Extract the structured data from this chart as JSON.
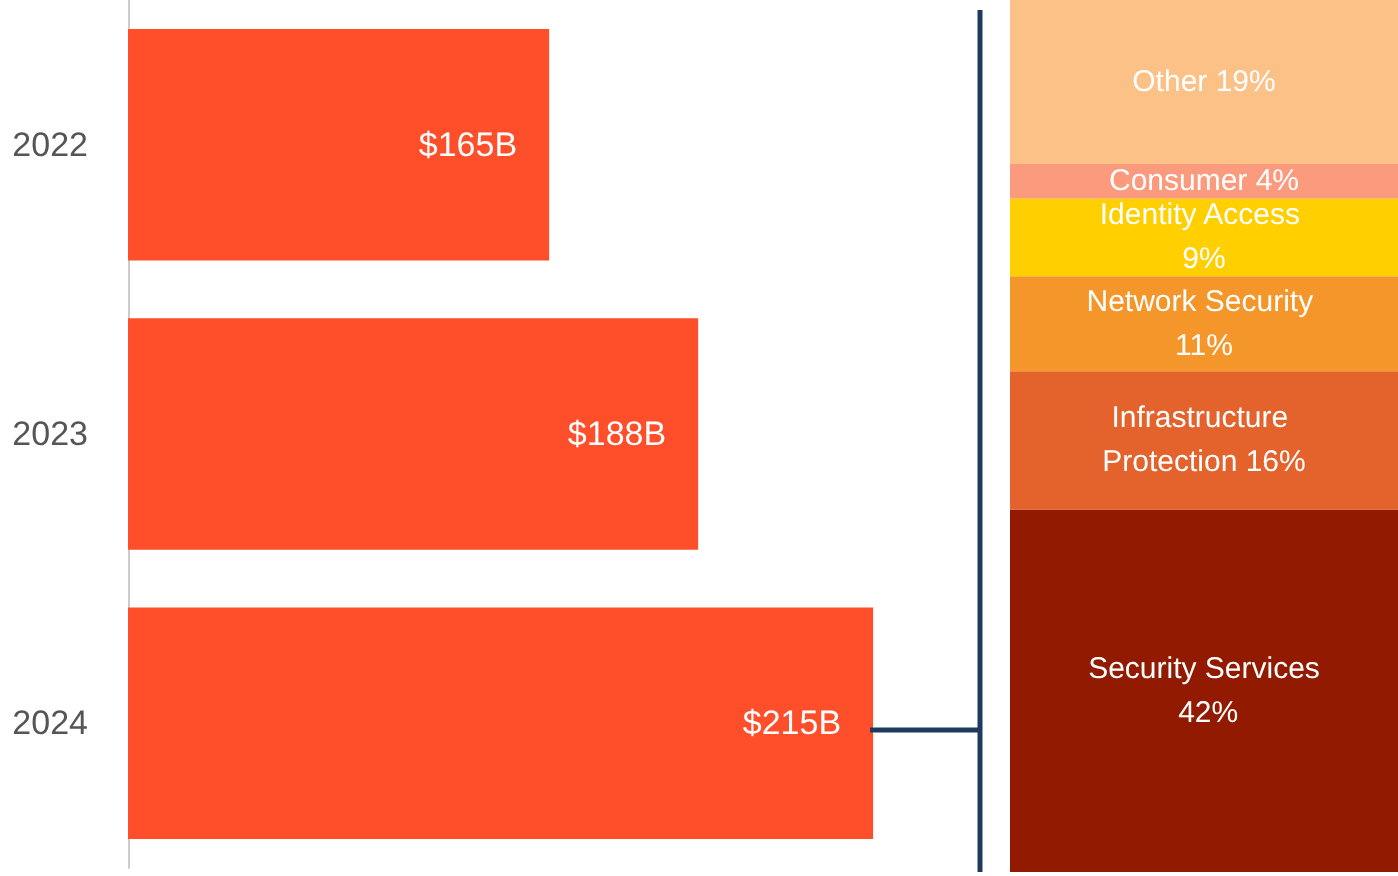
{
  "chart_data": [
    {
      "type": "bar",
      "orientation": "horizontal",
      "categories": [
        "2022",
        "2023",
        "2024"
      ],
      "xlim": [
        100,
        231.5
      ],
      "series": [
        {
          "color": "#fe4f2a",
          "values": [
            165,
            188,
            215
          ],
          "value_labels": [
            "$165B",
            "$188B",
            "$215B"
          ]
        }
      ]
    },
    {
      "type": "bar",
      "stacked": true,
      "categories": [
        null
      ],
      "ylim": [
        0,
        101
      ],
      "series": [
        {
          "name": "Security Services",
          "color": "#921a00",
          "values": [
            42
          ],
          "value_labels": [
            "42%"
          ]
        },
        {
          "name": "Infrastructure Protection",
          "color": "#e4622b",
          "values": [
            16
          ],
          "value_labels": [
            "16%"
          ]
        },
        {
          "name": "Network Security",
          "color": "#f5962a",
          "values": [
            11
          ],
          "value_labels": [
            "11%"
          ]
        },
        {
          "name": "Identity Access",
          "color": "#ffcf00",
          "values": [
            9
          ],
          "value_labels": [
            "9%"
          ]
        },
        {
          "name": "Consumer",
          "color": "#fb9a7c",
          "values": [
            4
          ],
          "value_labels": [
            "4%"
          ]
        },
        {
          "name": "Other",
          "color": "#fbc187",
          "values": [
            19
          ],
          "value_labels": [
            "19%"
          ]
        }
      ]
    }
  ]
}
